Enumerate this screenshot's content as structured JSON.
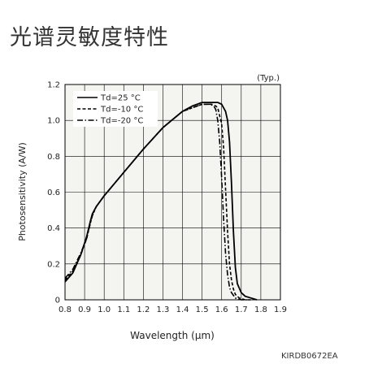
{
  "page": {
    "title": "光谱灵敏度特性",
    "figure_code": "KIRDB0672EA"
  },
  "chart_data": {
    "type": "line",
    "note": "(Typ.)",
    "xlabel": "Wavelength (μm)",
    "ylabel": "Photosensitivity (A/W)",
    "xlim": [
      0.8,
      1.9
    ],
    "ylim": [
      0,
      1.2
    ],
    "x_ticks": [
      "0.8",
      "0.9",
      "1.0",
      "1.1",
      "1.2",
      "1.3",
      "1.4",
      "1.5",
      "1.6",
      "1.7",
      "1.8",
      "1.9"
    ],
    "y_ticks": [
      "0",
      "0.2",
      "0.4",
      "0.6",
      "0.8",
      "1.0",
      "1.2"
    ],
    "grid": true,
    "legend_position": "top-left",
    "series": [
      {
        "name": "Td=25 °C",
        "style": "solid",
        "color": "#000000",
        "x": [
          0.8,
          0.84,
          0.88,
          0.91,
          0.93,
          0.94,
          0.96,
          1.0,
          1.1,
          1.2,
          1.3,
          1.4,
          1.45,
          1.5,
          1.55,
          1.58,
          1.6,
          1.62,
          1.63,
          1.64,
          1.65,
          1.66,
          1.67,
          1.68,
          1.7,
          1.72,
          1.75,
          1.78
        ],
        "y": [
          0.1,
          0.15,
          0.25,
          0.35,
          0.44,
          0.48,
          0.52,
          0.58,
          0.71,
          0.84,
          0.96,
          1.05,
          1.08,
          1.1,
          1.1,
          1.1,
          1.09,
          1.05,
          1.0,
          0.88,
          0.65,
          0.38,
          0.18,
          0.09,
          0.04,
          0.02,
          0.01,
          0.0
        ]
      },
      {
        "name": "Td=-10 °C",
        "style": "dashed",
        "color": "#000000",
        "x": [
          0.8,
          0.84,
          0.88,
          0.91,
          0.93,
          0.94,
          0.96,
          1.0,
          1.1,
          1.2,
          1.3,
          1.4,
          1.45,
          1.5,
          1.55,
          1.57,
          1.58,
          1.6,
          1.61,
          1.62,
          1.63,
          1.64,
          1.65,
          1.66,
          1.67,
          1.69,
          1.72,
          1.75
        ],
        "y": [
          0.11,
          0.16,
          0.25,
          0.34,
          0.43,
          0.47,
          0.52,
          0.58,
          0.71,
          0.84,
          0.96,
          1.05,
          1.07,
          1.09,
          1.09,
          1.08,
          1.07,
          0.98,
          0.85,
          0.62,
          0.38,
          0.2,
          0.11,
          0.06,
          0.03,
          0.01,
          0.0,
          0.0
        ]
      },
      {
        "name": "Td=-20 °C",
        "style": "dashdot",
        "color": "#000000",
        "x": [
          0.8,
          0.84,
          0.88,
          0.91,
          0.93,
          0.94,
          0.96,
          1.0,
          1.1,
          1.2,
          1.3,
          1.4,
          1.45,
          1.5,
          1.54,
          1.56,
          1.57,
          1.58,
          1.59,
          1.6,
          1.61,
          1.62,
          1.63,
          1.64,
          1.65,
          1.67,
          1.7,
          1.73
        ],
        "y": [
          0.12,
          0.17,
          0.26,
          0.34,
          0.43,
          0.47,
          0.52,
          0.58,
          0.71,
          0.84,
          0.96,
          1.05,
          1.07,
          1.09,
          1.09,
          1.08,
          1.06,
          1.0,
          0.88,
          0.68,
          0.45,
          0.26,
          0.14,
          0.07,
          0.04,
          0.01,
          0.0,
          0.0
        ]
      }
    ]
  }
}
